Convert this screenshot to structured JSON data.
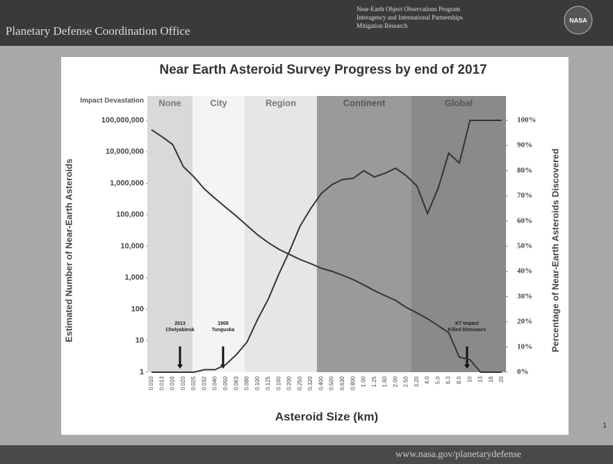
{
  "header": {
    "title": "Planetary Defense Coordination Office",
    "bullets": [
      "Near-Earth Object Observations Program",
      "Interagency and International Partnerships",
      "Mitigation Research"
    ],
    "logo": "NASA"
  },
  "footer": {
    "url": "www.nasa.gov/planetarydefense",
    "page": "1"
  },
  "chart_data": {
    "type": "line",
    "title": "Near Earth Asteroid Survey Progress by end of 2017",
    "x_label": "Asteroid Size (km)",
    "y_label": "Estimated Number of Near-Earth Asteroids",
    "y2_label": "Percentage of Near-Earth Asteroids Discovered",
    "zone_title": "Impact Devastation",
    "zones": [
      "None",
      "City",
      "Region",
      "Continent",
      "Global"
    ],
    "annotations": [
      [
        "2013",
        "Chelyabinsk"
      ],
      [
        "1908",
        "Tunguska"
      ],
      [
        "KT Impact",
        "Killed Dinosaurs"
      ]
    ],
    "categories": [
      "0.010",
      "0.013",
      "0.016",
      "0.020",
      "0.025",
      "0.032",
      "0.040",
      "0.050",
      "0.063",
      "0.080",
      "0.100",
      "0.125",
      "0.160",
      "0.200",
      "0.250",
      "0.320",
      "0.400",
      "0.500",
      "0.630",
      "0.800",
      "1.00",
      "1.25",
      "1.60",
      "2.00",
      "2.50",
      "3.20",
      "4.0",
      "5.0",
      "6.3",
      "8.0",
      "10",
      "13",
      "16",
      "20"
    ],
    "ylog": true,
    "ylim": [
      1,
      100000000
    ],
    "yticks": [
      1,
      10,
      100,
      {
        "value": 1000,
        "label": "1,000"
      },
      {
        "value": 10000,
        "label": "10,000"
      },
      {
        "value": 100000,
        "label": "100,000"
      },
      {
        "value": 1000000,
        "label": "1,000,000"
      },
      {
        "value": 10000000,
        "label": "10,000,000"
      },
      {
        "value": 100000000,
        "label": "100,000,000"
      }
    ],
    "y2lim": [
      0,
      100
    ],
    "y2ticks": [
      {
        "value": 0,
        "label": "0%"
      },
      {
        "value": 10,
        "label": "10%"
      },
      {
        "value": 20,
        "label": "20%"
      },
      {
        "value": 30,
        "label": "30%"
      },
      {
        "value": 40,
        "label": "40%"
      },
      {
        "value": 50,
        "label": "50%"
      },
      {
        "value": 60,
        "label": "60%"
      },
      {
        "value": 70,
        "label": "70%"
      },
      {
        "value": 80,
        "label": "80%"
      },
      {
        "value": 90,
        "label": "90%"
      },
      {
        "value": 100,
        "label": "100%"
      }
    ],
    "series": [
      {
        "color": "#333333",
        "values": [
          50000000,
          30000000,
          17000000,
          3400000,
          1600000,
          650000,
          330000,
          170000,
          90000,
          45000,
          23000,
          13000,
          8000,
          5500,
          3800,
          2800,
          2000,
          1600,
          1200,
          870,
          590,
          390,
          270,
          190,
          115,
          76,
          50,
          30,
          18,
          3,
          2.5,
          1,
          1,
          1
        ]
      },
      {
        "color": "#333333",
        "axis": "y2",
        "values": [
          0,
          0,
          0,
          0,
          0,
          1,
          1,
          3,
          7,
          12,
          21,
          29,
          39,
          48,
          58,
          65,
          71,
          74.5,
          76.5,
          77,
          80,
          77.5,
          79,
          81,
          78,
          74,
          63,
          73,
          87,
          83,
          100,
          100,
          100,
          100
        ]
      }
    ]
  }
}
